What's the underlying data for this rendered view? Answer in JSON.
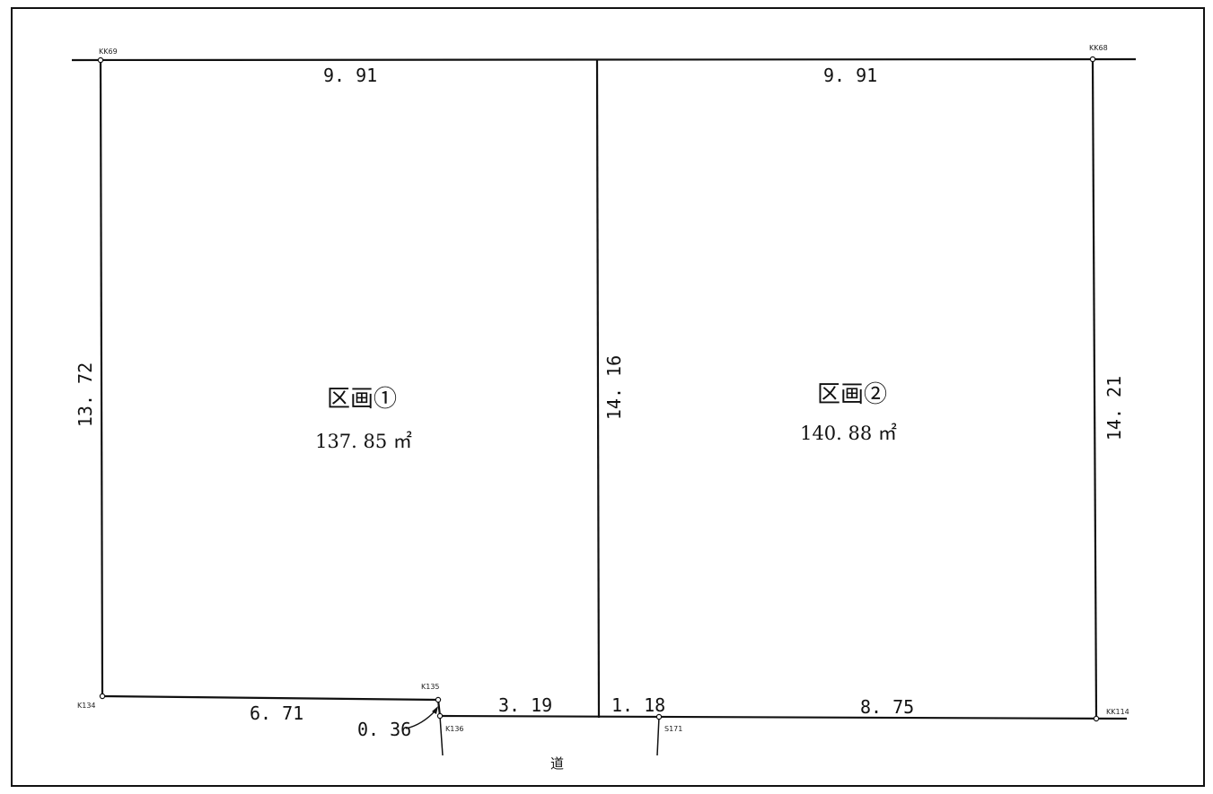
{
  "survey_marks": {
    "kk69": "KK69",
    "kk68": "KK68",
    "k134": "K134",
    "k135": "K135",
    "k136": "K136",
    "s171": "S171",
    "kk114": "KK114"
  },
  "dimensions": {
    "top_left": "9. 91",
    "top_right": "9. 91",
    "left": "13. 72",
    "middle": "14. 16",
    "right": "14. 21",
    "bottom_left": "6. 71",
    "offset": "0. 36",
    "bottom_mid": "3. 19",
    "bottom_short": "1. 18",
    "bottom_right": "8. 75"
  },
  "lots": [
    {
      "name": "区画①",
      "area": "137. 85 ㎡"
    },
    {
      "name": "区画②",
      "area": "140. 88 ㎡"
    }
  ],
  "road_label": "道",
  "colors": {
    "line": "#111111",
    "background": "#ffffff"
  }
}
